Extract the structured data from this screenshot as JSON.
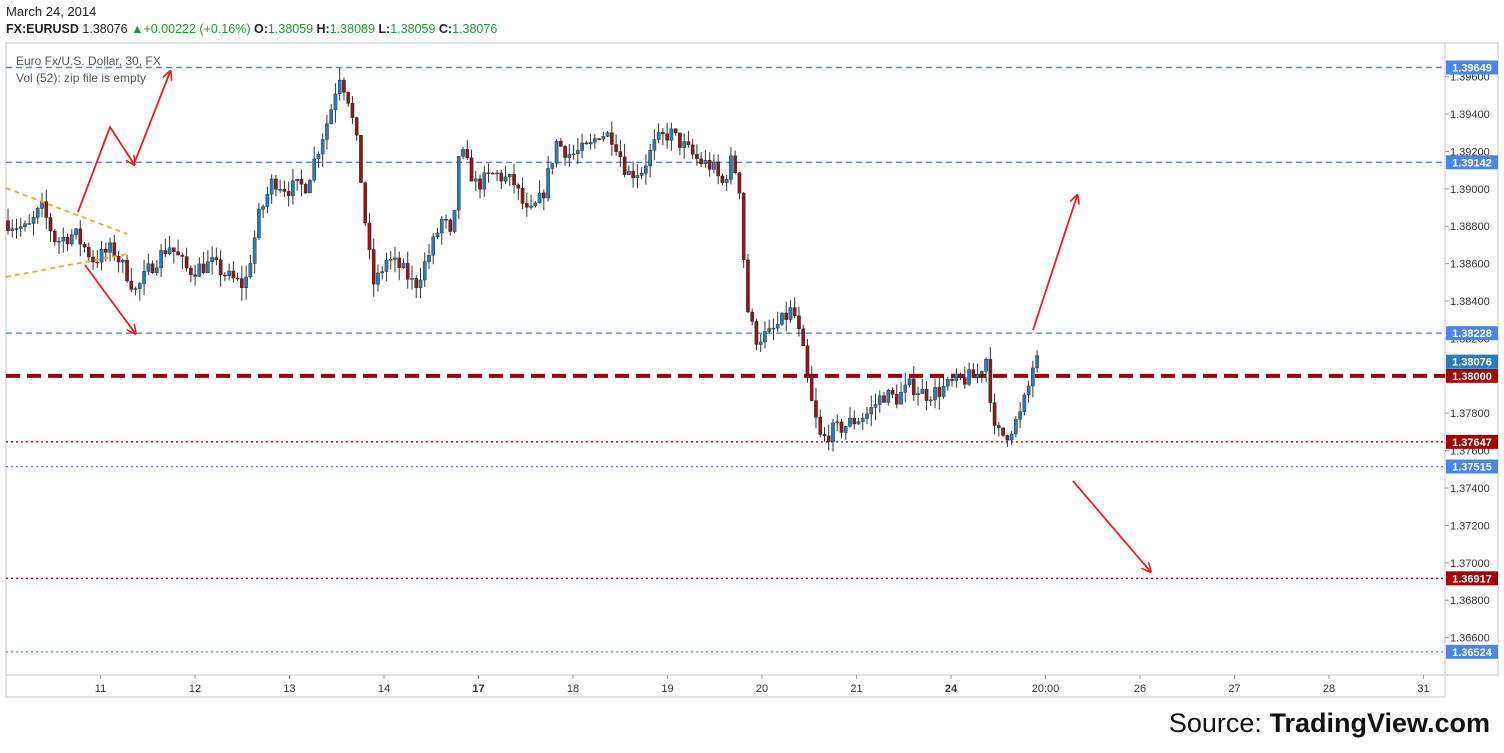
{
  "header": {
    "date": "March 24, 2014",
    "symbol": "FX:EURUSD",
    "last": "1.38076",
    "change": "+0.00222 (+0.16%)",
    "open": "1.38059",
    "high": "1.38089",
    "low": "1.38059",
    "close": "1.38076",
    "o_label": "O:",
    "h_label": "H:",
    "l_label": "L:",
    "c_label": "C:"
  },
  "legend": {
    "instrument": "Euro Fx/U.S. Dollar, 30, FX",
    "volume_note": "Vol (52): zip file is empty"
  },
  "source": {
    "prefix": "Source: ",
    "brand": "TradingView.com"
  },
  "colors": {
    "blue_level": "#4a86e8",
    "red_level": "#a00000",
    "bull_candle": "#2b7bb9",
    "bear_candle": "#8b1a1a",
    "arrow": "#e8201f",
    "triangle": "#f5a623"
  },
  "chart_data": {
    "type": "candlestick",
    "timeframe": "30",
    "ylim": [
      1.364,
      1.3978
    ],
    "y_ticks": [
      "1.39600",
      "1.39400",
      "1.39200",
      "1.39000",
      "1.38800",
      "1.38600",
      "1.38400",
      "1.38200",
      "1.38000",
      "1.37800",
      "1.37600",
      "1.37400",
      "1.37200",
      "1.37000",
      "1.36800",
      "1.36600"
    ],
    "x_ticks": [
      "11",
      "12",
      "13",
      "14",
      "17",
      "18",
      "19",
      "20",
      "21",
      "24",
      "20:00",
      "26",
      "27",
      "28",
      "31"
    ],
    "bold_x_ticks": [
      "17",
      "24"
    ],
    "levels": [
      {
        "value": 1.39649,
        "label": "1.39649",
        "color": "blue",
        "style": "dashed"
      },
      {
        "value": 1.39142,
        "label": "1.39142",
        "color": "blue",
        "style": "dashed"
      },
      {
        "value": 1.38228,
        "label": "1.38228",
        "color": "blue",
        "style": "dashed"
      },
      {
        "value": 1.38,
        "label": "1.38000",
        "color": "darkred",
        "style": "thick-dashed"
      },
      {
        "value": 1.37647,
        "label": "1.37647",
        "color": "darkred",
        "style": "dotted"
      },
      {
        "value": 1.37515,
        "label": "1.37515",
        "color": "blue",
        "style": "dotted"
      },
      {
        "value": 1.36917,
        "label": "1.36917",
        "color": "darkred",
        "style": "dotted"
      },
      {
        "value": 1.36524,
        "label": "1.36524",
        "color": "blue",
        "style": "dotted"
      }
    ],
    "last_price": {
      "value": 1.38076,
      "label": "1.38076"
    },
    "price_path": [
      [
        0.0,
        1.3883
      ],
      [
        0.25,
        1.3878
      ],
      [
        0.4,
        1.389
      ],
      [
        0.55,
        1.3872
      ],
      [
        0.75,
        1.3876
      ],
      [
        0.95,
        1.3862
      ],
      [
        1.15,
        1.3868
      ],
      [
        1.3,
        1.3855
      ],
      [
        1.4,
        1.3845
      ],
      [
        1.55,
        1.3858
      ],
      [
        1.75,
        1.387
      ],
      [
        1.95,
        1.3856
      ],
      [
        2.2,
        1.386
      ],
      [
        2.4,
        1.3852
      ],
      [
        2.55,
        1.3848
      ],
      [
        2.7,
        1.3885
      ],
      [
        2.85,
        1.3905
      ],
      [
        3.0,
        1.39
      ],
      [
        3.2,
        1.3902
      ],
      [
        3.35,
        1.3925
      ],
      [
        3.45,
        1.394
      ],
      [
        3.55,
        1.3962
      ],
      [
        3.65,
        1.3948
      ],
      [
        3.75,
        1.392
      ],
      [
        3.85,
        1.387
      ],
      [
        3.92,
        1.3848
      ],
      [
        4.05,
        1.3862
      ],
      [
        4.2,
        1.3858
      ],
      [
        4.35,
        1.3848
      ],
      [
        4.5,
        1.3865
      ],
      [
        4.65,
        1.3885
      ],
      [
        4.75,
        1.387
      ],
      [
        4.82,
        1.3922
      ],
      [
        5.0,
        1.3902
      ],
      [
        5.2,
        1.3908
      ],
      [
        5.4,
        1.3903
      ],
      [
        5.55,
        1.3885
      ],
      [
        5.7,
        1.3896
      ],
      [
        5.85,
        1.3925
      ],
      [
        6.0,
        1.3918
      ],
      [
        6.2,
        1.3922
      ],
      [
        6.3,
        1.393
      ],
      [
        6.45,
        1.3928
      ],
      [
        6.6,
        1.3908
      ],
      [
        6.75,
        1.391
      ],
      [
        6.9,
        1.3925
      ],
      [
        7.05,
        1.393
      ],
      [
        7.25,
        1.392
      ],
      [
        7.35,
        1.3915
      ],
      [
        7.5,
        1.3912
      ],
      [
        7.6,
        1.3902
      ],
      [
        7.7,
        1.3915
      ],
      [
        7.78,
        1.3905
      ],
      [
        7.86,
        1.3838
      ],
      [
        7.95,
        1.382
      ],
      [
        8.1,
        1.3822
      ],
      [
        8.25,
        1.383
      ],
      [
        8.35,
        1.3836
      ],
      [
        8.45,
        1.3815
      ],
      [
        8.55,
        1.3785
      ],
      [
        8.65,
        1.3765
      ],
      [
        8.75,
        1.377
      ],
      [
        8.85,
        1.3772
      ],
      [
        9.0,
        1.3776
      ],
      [
        9.15,
        1.378
      ],
      [
        9.3,
        1.379
      ],
      [
        9.45,
        1.3788
      ],
      [
        9.6,
        1.3795
      ],
      [
        9.75,
        1.379
      ],
      [
        9.9,
        1.3792
      ],
      [
        10.0,
        1.3795
      ],
      [
        10.15,
        1.3798
      ],
      [
        10.3,
        1.38
      ],
      [
        10.4,
        1.381
      ],
      [
        10.48,
        1.377
      ],
      [
        10.6,
        1.3768
      ],
      [
        10.75,
        1.3778
      ],
      [
        10.85,
        1.3795
      ],
      [
        10.9,
        1.38076
      ]
    ]
  }
}
